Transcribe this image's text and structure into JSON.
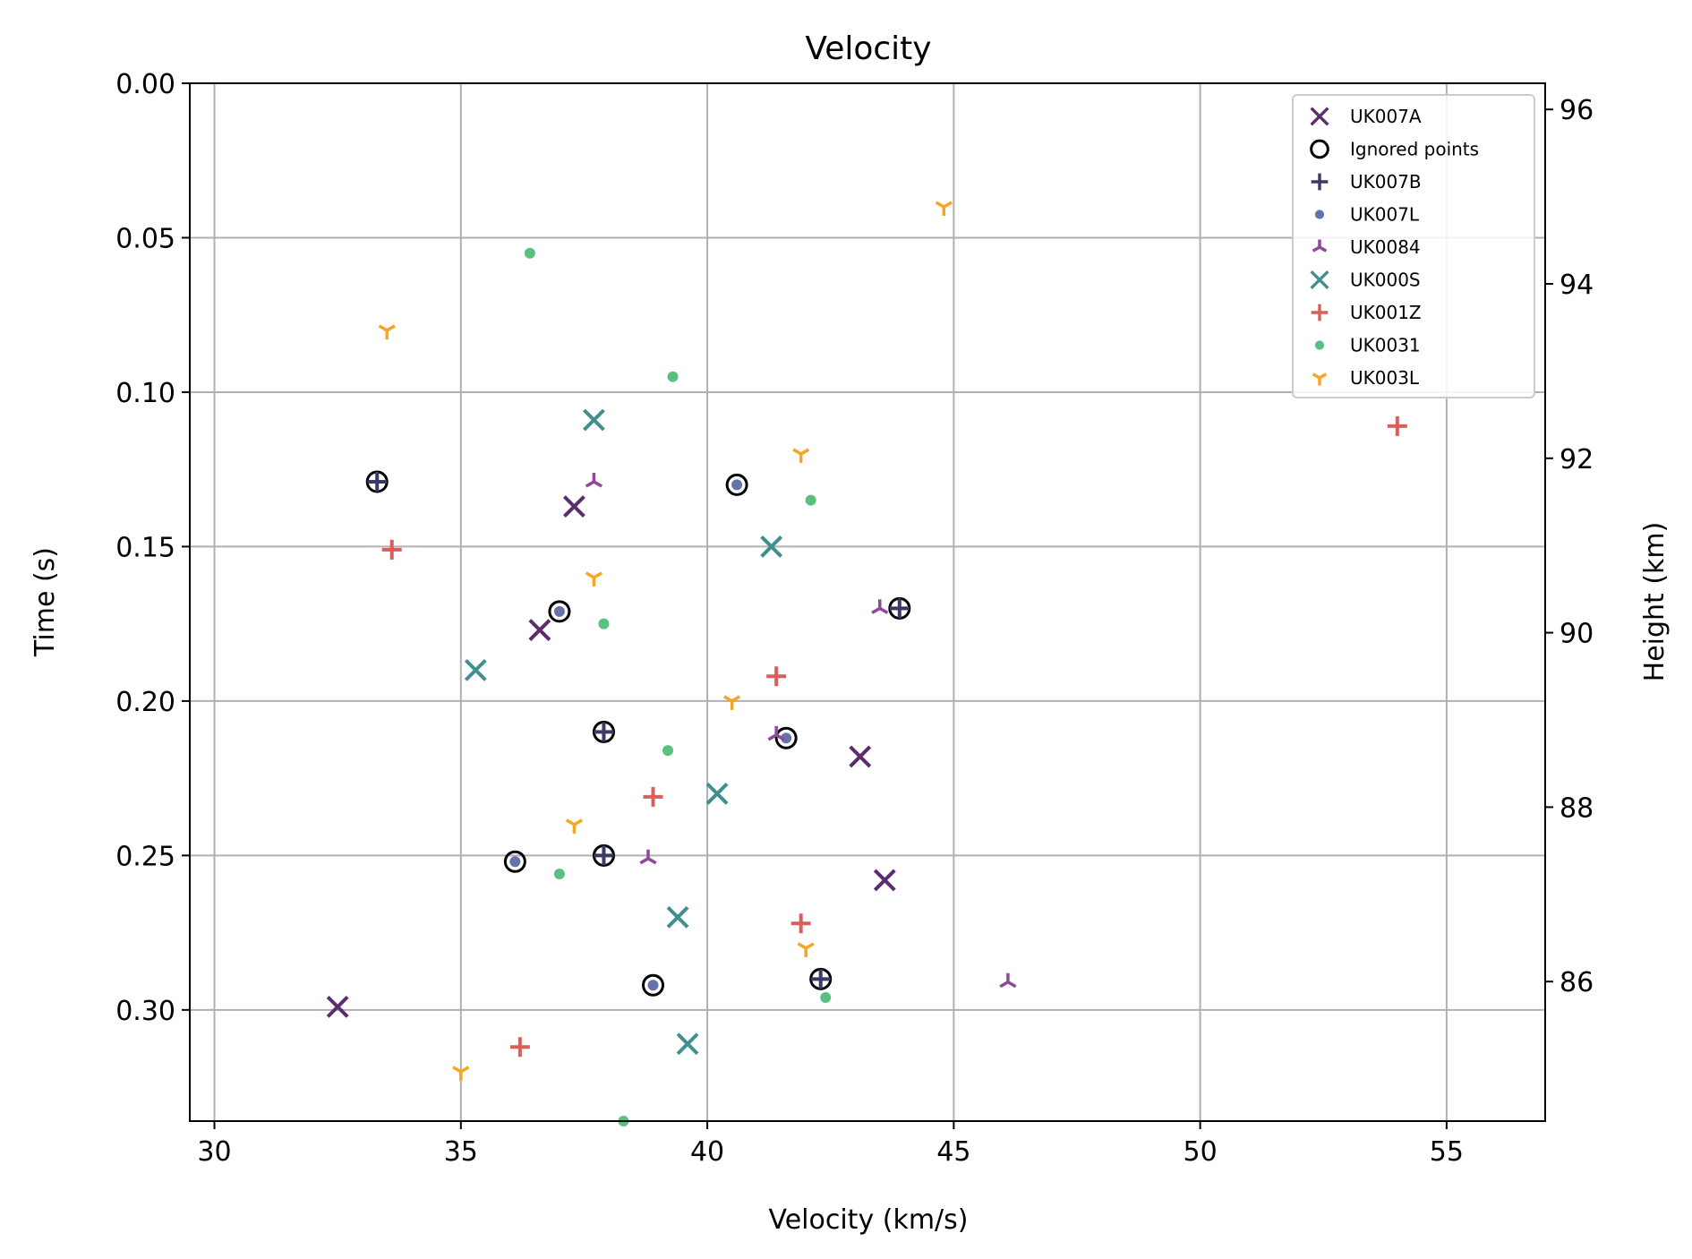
{
  "chart_data": {
    "type": "scatter",
    "title": "Velocity",
    "xlabel": "Velocity (km/s)",
    "ylabel": "Time (s)",
    "y2label": "Height (km)",
    "xlim": [
      29.5,
      57.0
    ],
    "ylim": [
      0.336,
      0.0
    ],
    "y2lim": [
      84.4,
      96.3
    ],
    "x_ticks": [
      30,
      35,
      40,
      45,
      50,
      55
    ],
    "y_ticks": [
      0.0,
      0.05,
      0.1,
      0.15,
      0.2,
      0.25,
      0.3
    ],
    "y_tick_labels": [
      "0.00",
      "0.05",
      "0.10",
      "0.15",
      "0.20",
      "0.25",
      "0.30"
    ],
    "y2_ticks": [
      86,
      88,
      90,
      92,
      94,
      96
    ],
    "grid": true,
    "legend_position": "top-right",
    "series": [
      {
        "name": "UK007A",
        "marker": "x",
        "color": "#5b2d6e",
        "x": [
          37.3,
          36.6,
          43.1,
          43.6,
          32.5
        ],
        "y": [
          0.137,
          0.177,
          0.218,
          0.258,
          0.299
        ]
      },
      {
        "name": "Ignored points",
        "marker": "circle-open",
        "color": "#000000",
        "x": [
          33.3,
          40.6,
          37.0,
          43.9,
          37.9,
          41.6,
          36.1,
          37.9,
          38.9,
          42.3
        ],
        "y": [
          0.129,
          0.13,
          0.171,
          0.17,
          0.21,
          0.212,
          0.252,
          0.25,
          0.292,
          0.29
        ]
      },
      {
        "name": "UK007B",
        "marker": "plus",
        "color": "#3b3a66",
        "x": [
          33.3,
          43.9,
          37.9,
          37.9,
          42.3
        ],
        "y": [
          0.129,
          0.17,
          0.21,
          0.25,
          0.29
        ]
      },
      {
        "name": "UK007L",
        "marker": "dot",
        "color": "#4a5a9a",
        "x": [
          40.6,
          37.0,
          41.6,
          36.1,
          38.9
        ],
        "y": [
          0.13,
          0.171,
          0.212,
          0.252,
          0.292
        ]
      },
      {
        "name": "UK0084",
        "marker": "tri",
        "color": "#8e4a98",
        "x": [
          37.7,
          43.5,
          41.4,
          38.8,
          46.1
        ],
        "y": [
          0.129,
          0.17,
          0.211,
          0.251,
          0.291
        ]
      },
      {
        "name": "UK000S",
        "marker": "x",
        "color": "#3f8f8f",
        "x": [
          37.7,
          41.3,
          35.3,
          40.2,
          39.4,
          39.6
        ],
        "y": [
          0.109,
          0.15,
          0.19,
          0.23,
          0.27,
          0.311
        ]
      },
      {
        "name": "UK001Z",
        "marker": "plus",
        "color": "#d9605a",
        "x": [
          54.0,
          33.6,
          41.4,
          38.9,
          41.9,
          36.2
        ],
        "y": [
          0.111,
          0.151,
          0.192,
          0.231,
          0.272,
          0.312
        ]
      },
      {
        "name": "UK0031",
        "marker": "dot",
        "color": "#3cb56a",
        "x": [
          36.4,
          39.3,
          42.1,
          37.9,
          39.2,
          37.0,
          42.4,
          38.3
        ],
        "y": [
          0.055,
          0.095,
          0.135,
          0.175,
          0.216,
          0.256,
          0.296,
          0.336
        ]
      },
      {
        "name": "UK003L",
        "marker": "tri-up",
        "color": "#f5a623",
        "x": [
          44.8,
          33.5,
          41.9,
          37.7,
          40.5,
          37.3,
          42.0,
          35.0
        ],
        "y": [
          0.04,
          0.08,
          0.12,
          0.16,
          0.2,
          0.24,
          0.28,
          0.32
        ]
      }
    ]
  }
}
